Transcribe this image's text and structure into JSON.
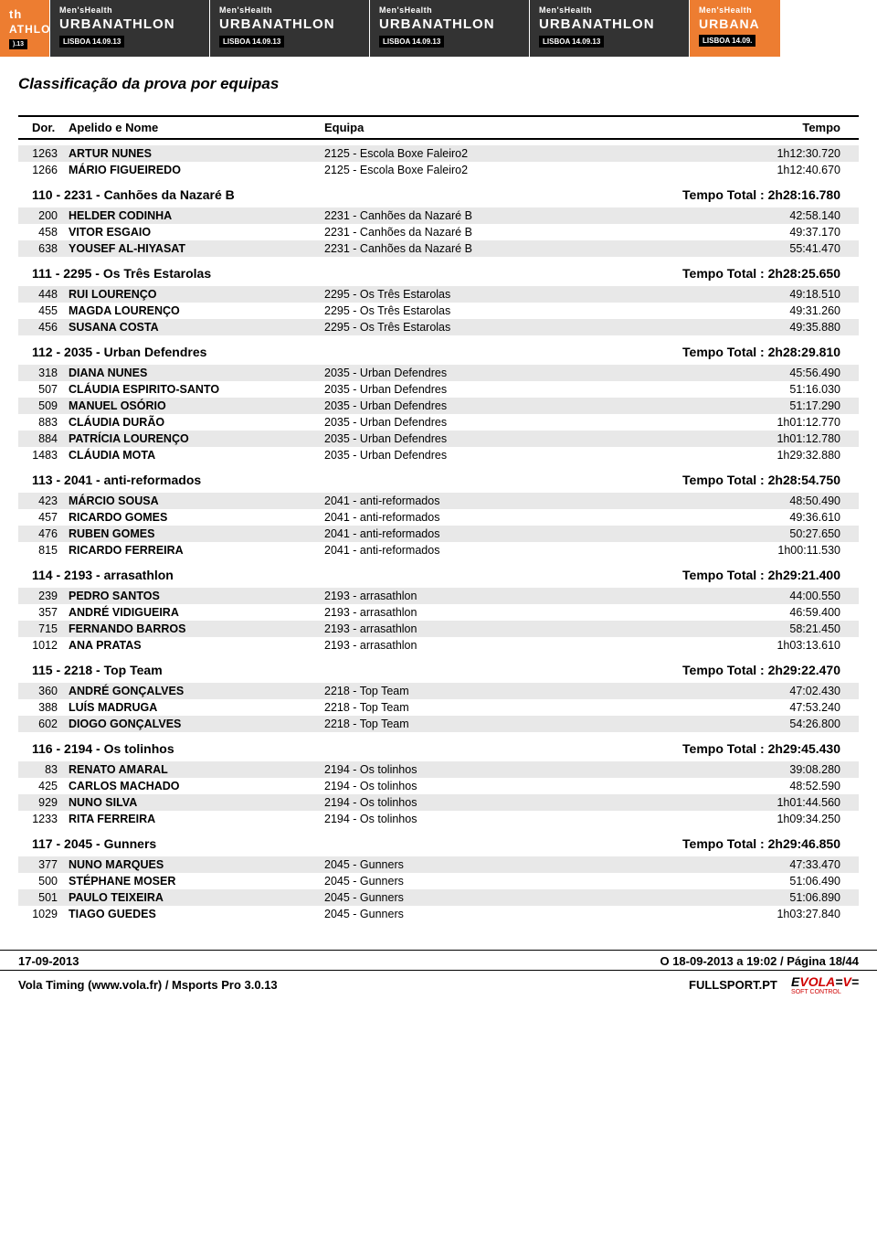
{
  "banner": {
    "mens_health": "Men'sHealth",
    "urbanathlon": "URBANATHLON",
    "sub": "LISBOA 14.09.13",
    "tile_bg": "#333333",
    "accent_bg": "#ed7d31"
  },
  "title": "Classificação da prova por equipas",
  "columns": {
    "dor": "Dor.",
    "nome": "Apelido e Nome",
    "equipa": "Equipa",
    "tempo": "Tempo"
  },
  "orphan_rows": [
    {
      "dor": "1263",
      "nome": "ARTUR NUNES",
      "equipa": "2125 - Escola Boxe Faleiro2",
      "tempo": "1h12:30.720",
      "shade": true
    },
    {
      "dor": "1266",
      "nome": "MÁRIO FIGUEIREDO",
      "equipa": "2125 - Escola Boxe Faleiro2",
      "tempo": "1h12:40.670",
      "shade": false
    }
  ],
  "groups": [
    {
      "name": "110 - 2231 - Canhões da Nazaré B",
      "total": "Tempo Total : 2h28:16.780",
      "rows": [
        {
          "dor": "200",
          "nome": "HELDER CODINHA",
          "equipa": "2231 - Canhões da Nazaré B",
          "tempo": "42:58.140",
          "shade": true
        },
        {
          "dor": "458",
          "nome": "VITOR ESGAIO",
          "equipa": "2231 - Canhões da Nazaré B",
          "tempo": "49:37.170",
          "shade": false
        },
        {
          "dor": "638",
          "nome": "YOUSEF AL-HIYASAT",
          "equipa": "2231 - Canhões da Nazaré B",
          "tempo": "55:41.470",
          "shade": true
        }
      ]
    },
    {
      "name": "111 - 2295 - Os Três Estarolas",
      "total": "Tempo Total : 2h28:25.650",
      "rows": [
        {
          "dor": "448",
          "nome": "RUI LOURENÇO",
          "equipa": "2295 - Os Três Estarolas",
          "tempo": "49:18.510",
          "shade": true
        },
        {
          "dor": "455",
          "nome": "MAGDA LOURENÇO",
          "equipa": "2295 - Os Três Estarolas",
          "tempo": "49:31.260",
          "shade": false
        },
        {
          "dor": "456",
          "nome": "SUSANA COSTA",
          "equipa": "2295 - Os Três Estarolas",
          "tempo": "49:35.880",
          "shade": true
        }
      ]
    },
    {
      "name": "112 - 2035 - Urban Defendres",
      "total": "Tempo Total : 2h28:29.810",
      "rows": [
        {
          "dor": "318",
          "nome": "DIANA NUNES",
          "equipa": "2035 - Urban Defendres",
          "tempo": "45:56.490",
          "shade": true
        },
        {
          "dor": "507",
          "nome": "CLÁUDIA ESPIRITO-SANTO",
          "equipa": "2035 - Urban Defendres",
          "tempo": "51:16.030",
          "shade": false
        },
        {
          "dor": "509",
          "nome": "MANUEL OSÓRIO",
          "equipa": "2035 - Urban Defendres",
          "tempo": "51:17.290",
          "shade": true
        },
        {
          "dor": "883",
          "nome": "CLÁUDIA DURÃO",
          "equipa": "2035 - Urban Defendres",
          "tempo": "1h01:12.770",
          "shade": false
        },
        {
          "dor": "884",
          "nome": "PATRÍCIA LOURENÇO",
          "equipa": "2035 - Urban Defendres",
          "tempo": "1h01:12.780",
          "shade": true
        },
        {
          "dor": "1483",
          "nome": "CLÁUDIA MOTA",
          "equipa": "2035 - Urban Defendres",
          "tempo": "1h29:32.880",
          "shade": false
        }
      ]
    },
    {
      "name": "113 - 2041 - anti-reformados",
      "total": "Tempo Total : 2h28:54.750",
      "rows": [
        {
          "dor": "423",
          "nome": "MÁRCIO SOUSA",
          "equipa": "2041 - anti-reformados",
          "tempo": "48:50.490",
          "shade": true
        },
        {
          "dor": "457",
          "nome": "RICARDO GOMES",
          "equipa": "2041 - anti-reformados",
          "tempo": "49:36.610",
          "shade": false
        },
        {
          "dor": "476",
          "nome": "RUBEN GOMES",
          "equipa": "2041 - anti-reformados",
          "tempo": "50:27.650",
          "shade": true
        },
        {
          "dor": "815",
          "nome": "RICARDO FERREIRA",
          "equipa": "2041 - anti-reformados",
          "tempo": "1h00:11.530",
          "shade": false
        }
      ]
    },
    {
      "name": "114 - 2193 - arrasathlon",
      "total": "Tempo Total : 2h29:21.400",
      "rows": [
        {
          "dor": "239",
          "nome": "PEDRO SANTOS",
          "equipa": "2193 - arrasathlon",
          "tempo": "44:00.550",
          "shade": true
        },
        {
          "dor": "357",
          "nome": "ANDRÉ VIDIGUEIRA",
          "equipa": "2193 - arrasathlon",
          "tempo": "46:59.400",
          "shade": false
        },
        {
          "dor": "715",
          "nome": "FERNANDO BARROS",
          "equipa": "2193 - arrasathlon",
          "tempo": "58:21.450",
          "shade": true
        },
        {
          "dor": "1012",
          "nome": "ANA PRATAS",
          "equipa": "2193 - arrasathlon",
          "tempo": "1h03:13.610",
          "shade": false
        }
      ]
    },
    {
      "name": "115 - 2218 - Top Team",
      "total": "Tempo Total : 2h29:22.470",
      "rows": [
        {
          "dor": "360",
          "nome": "ANDRÉ GONÇALVES",
          "equipa": "2218 - Top Team",
          "tempo": "47:02.430",
          "shade": true
        },
        {
          "dor": "388",
          "nome": "LUÍS MADRUGA",
          "equipa": "2218 - Top Team",
          "tempo": "47:53.240",
          "shade": false
        },
        {
          "dor": "602",
          "nome": "DIOGO GONÇALVES",
          "equipa": "2218 - Top Team",
          "tempo": "54:26.800",
          "shade": true
        }
      ]
    },
    {
      "name": "116 - 2194 - Os tolinhos",
      "total": "Tempo Total : 2h29:45.430",
      "rows": [
        {
          "dor": "83",
          "nome": "RENATO AMARAL",
          "equipa": "2194 - Os tolinhos",
          "tempo": "39:08.280",
          "shade": true
        },
        {
          "dor": "425",
          "nome": "CARLOS MACHADO",
          "equipa": "2194 - Os tolinhos",
          "tempo": "48:52.590",
          "shade": false
        },
        {
          "dor": "929",
          "nome": "NUNO SILVA",
          "equipa": "2194 - Os tolinhos",
          "tempo": "1h01:44.560",
          "shade": true
        },
        {
          "dor": "1233",
          "nome": "RITA FERREIRA",
          "equipa": "2194 - Os tolinhos",
          "tempo": "1h09:34.250",
          "shade": false
        }
      ]
    },
    {
      "name": "117 - 2045 - Gunners",
      "total": "Tempo Total : 2h29:46.850",
      "rows": [
        {
          "dor": "377",
          "nome": "NUNO MARQUES",
          "equipa": "2045 - Gunners",
          "tempo": "47:33.470",
          "shade": true
        },
        {
          "dor": "500",
          "nome": "STÉPHANE MOSER",
          "equipa": "2045 - Gunners",
          "tempo": "51:06.490",
          "shade": false
        },
        {
          "dor": "501",
          "nome": "PAULO TEIXEIRA",
          "equipa": "2045 - Gunners",
          "tempo": "51:06.890",
          "shade": true
        },
        {
          "dor": "1029",
          "nome": "TIAGO GUEDES",
          "equipa": "2045 - Gunners",
          "tempo": "1h03:27.840",
          "shade": false
        }
      ]
    }
  ],
  "footer": {
    "date": "17-09-2013",
    "right": "O 18-09-2013 a 19:02 / Página 18/44",
    "timing": "Vola Timing (www.vola.fr) / Msports Pro 3.0.13",
    "sponsor": "FULLSPORT.PT",
    "vola": "VOLA",
    "vola_sub": "SOFT CONTROL"
  }
}
